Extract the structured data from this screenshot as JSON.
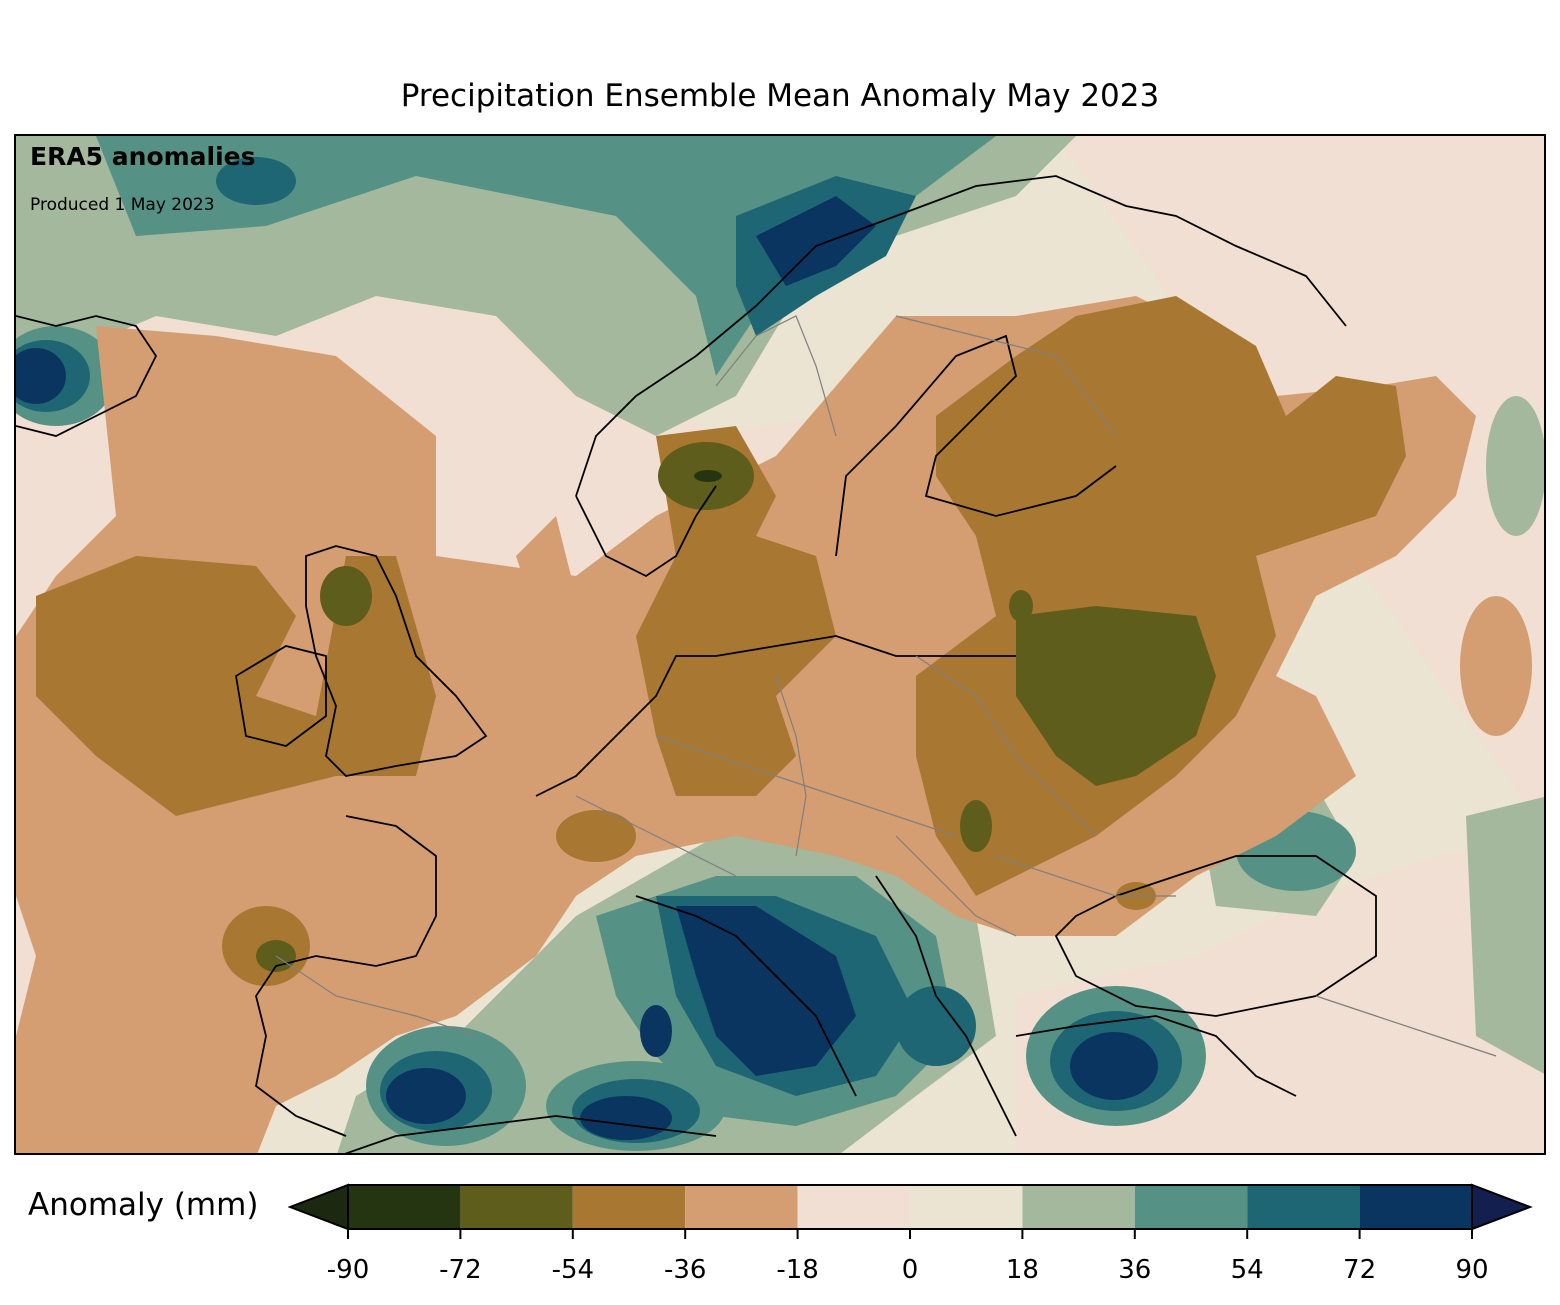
{
  "title": "Precipitation Ensemble Mean Anomaly May 2023",
  "annotations": {
    "source": "ERA5 anomalies",
    "produced": "Produced 1 May 2023"
  },
  "colorbar": {
    "label": "Anomaly (mm)",
    "ticks": [
      "-90",
      "-72",
      "-54",
      "-36",
      "-18",
      "0",
      "18",
      "36",
      "54",
      "72",
      "90"
    ],
    "bins": [
      {
        "from": -90,
        "to": -72,
        "color": "#263511"
      },
      {
        "from": -72,
        "to": -54,
        "color": "#5f5d1c"
      },
      {
        "from": -54,
        "to": -36,
        "color": "#a87833"
      },
      {
        "from": -36,
        "to": -18,
        "color": "#d59e72"
      },
      {
        "from": -18,
        "to": 0,
        "color": "#f0dfd2"
      },
      {
        "from": 0,
        "to": 18,
        "color": "#ece4d2"
      },
      {
        "from": 18,
        "to": 36,
        "color": "#a3b89c"
      },
      {
        "from": 36,
        "to": 54,
        "color": "#559185"
      },
      {
        "from": 54,
        "to": 72,
        "color": "#1e6674"
      },
      {
        "from": 72,
        "to": 90,
        "color": "#0b3561"
      }
    ],
    "under_color": "#1c2910",
    "over_color": "#131f4f",
    "extend": "both"
  },
  "map": {
    "region": "Europe",
    "borders": "country boundaries (grey) and coastlines (black)"
  }
}
